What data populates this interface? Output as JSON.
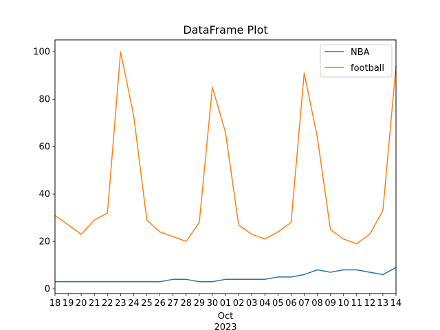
{
  "chart_data": {
    "type": "line",
    "title": "DataFrame Plot",
    "xlabel": "",
    "ylabel": "",
    "x_tick_labels": [
      "18",
      "19",
      "20",
      "21",
      "22",
      "23",
      "24",
      "25",
      "26",
      "27",
      "28",
      "29",
      "30",
      "01",
      "02",
      "03",
      "04",
      "05",
      "06",
      "07",
      "08",
      "09",
      "10",
      "11",
      "12",
      "13",
      "14"
    ],
    "x_month_label": "Oct",
    "x_year_label": "2023",
    "x": [
      "2023-09-18",
      "2023-09-19",
      "2023-09-20",
      "2023-09-21",
      "2023-09-22",
      "2023-09-23",
      "2023-09-24",
      "2023-09-25",
      "2023-09-26",
      "2023-09-27",
      "2023-09-28",
      "2023-09-29",
      "2023-09-30",
      "2023-10-01",
      "2023-10-02",
      "2023-10-03",
      "2023-10-04",
      "2023-10-05",
      "2023-10-06",
      "2023-10-07",
      "2023-10-08",
      "2023-10-09",
      "2023-10-10",
      "2023-10-11",
      "2023-10-12",
      "2023-10-13",
      "2023-10-14"
    ],
    "ylim": [
      -2,
      105
    ],
    "y_ticks": [
      0,
      20,
      40,
      60,
      80,
      100
    ],
    "grid": false,
    "legend_position": "top-right",
    "series": [
      {
        "name": "NBA",
        "color": "#1f77b4",
        "values": [
          3,
          3,
          3,
          3,
          3,
          3,
          3,
          3,
          3,
          4,
          4,
          3,
          3,
          4,
          4,
          4,
          4,
          5,
          5,
          6,
          8,
          7,
          8,
          8,
          7,
          6,
          9
        ]
      },
      {
        "name": "football",
        "color": "#ff7f0e",
        "values": [
          31,
          27,
          23,
          29,
          32,
          100,
          73,
          29,
          24,
          22,
          20,
          28,
          85,
          66,
          27,
          23,
          21,
          24,
          28,
          91,
          64,
          25,
          21,
          19,
          23,
          33,
          94
        ]
      }
    ]
  }
}
